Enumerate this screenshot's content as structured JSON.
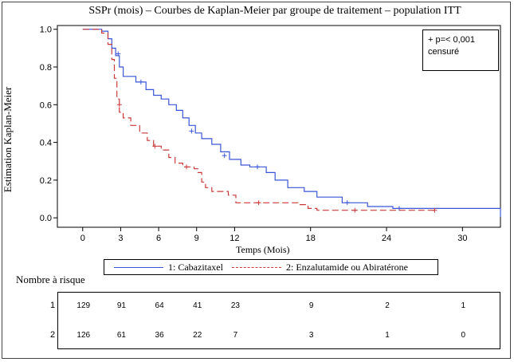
{
  "chart_data": {
    "type": "line",
    "title": "SSPr (mois) – Courbes de Kaplan-Meier par groupe de traitement – population ITT",
    "xlabel": "Temps (Mois)",
    "ylabel": "Estimation Kaplan-Meier",
    "xlim": [
      -2,
      33
    ],
    "ylim": [
      -0.05,
      1.02
    ],
    "xticks": [
      0,
      3,
      6,
      9,
      12,
      18,
      24,
      30
    ],
    "xtick_labels": [
      "0",
      "3",
      "6",
      "9",
      "12",
      "18",
      "24",
      "30"
    ],
    "yticks": [
      0.0,
      0.2,
      0.4,
      0.6,
      0.8,
      1.0
    ],
    "ytick_labels": [
      "0.0",
      "0.2",
      "0.4",
      "0.6",
      "0.8",
      "1.0"
    ],
    "annotation": [
      "+ p=< 0,001",
      "censuré"
    ],
    "series": [
      {
        "name": "1: Cabazitaxel",
        "color": "#3a55d8",
        "dash": "solid",
        "points": [
          [
            0,
            1.0
          ],
          [
            1.5,
            0.99
          ],
          [
            2.0,
            0.95
          ],
          [
            2.3,
            0.9
          ],
          [
            2.6,
            0.86
          ],
          [
            2.9,
            0.8
          ],
          [
            3.2,
            0.75
          ],
          [
            4.2,
            0.72
          ],
          [
            5.0,
            0.68
          ],
          [
            5.6,
            0.65
          ],
          [
            6.2,
            0.63
          ],
          [
            6.8,
            0.6
          ],
          [
            7.4,
            0.57
          ],
          [
            7.9,
            0.53
          ],
          [
            8.4,
            0.49
          ],
          [
            8.9,
            0.45
          ],
          [
            9.4,
            0.42
          ],
          [
            10.2,
            0.39
          ],
          [
            10.9,
            0.35
          ],
          [
            11.6,
            0.31
          ],
          [
            12.5,
            0.28
          ],
          [
            13.2,
            0.27
          ],
          [
            14.5,
            0.24
          ],
          [
            15.2,
            0.2
          ],
          [
            16.2,
            0.16
          ],
          [
            17.5,
            0.14
          ],
          [
            18.5,
            0.11
          ],
          [
            20.5,
            0.08
          ],
          [
            22.5,
            0.06
          ],
          [
            24.5,
            0.05
          ],
          [
            29.0,
            0.05
          ],
          [
            30.5,
            0.05
          ],
          [
            33.0,
            0.05
          ],
          [
            33.0,
            0.005
          ]
        ],
        "censored": [
          [
            2.8,
            0.87
          ],
          [
            4.6,
            0.72
          ],
          [
            8.6,
            0.46
          ],
          [
            11.2,
            0.33
          ],
          [
            13.8,
            0.27
          ],
          [
            20.9,
            0.08
          ],
          [
            25.0,
            0.05
          ]
        ]
      },
      {
        "name": "2: Enzalutamide ou Abiratérone",
        "color": "#c93a3a",
        "dash": "dashed",
        "points": [
          [
            0,
            1.0
          ],
          [
            1.5,
            0.98
          ],
          [
            2.0,
            0.92
          ],
          [
            2.3,
            0.84
          ],
          [
            2.5,
            0.74
          ],
          [
            2.7,
            0.63
          ],
          [
            2.9,
            0.56
          ],
          [
            3.2,
            0.53
          ],
          [
            3.8,
            0.49
          ],
          [
            4.5,
            0.45
          ],
          [
            5.1,
            0.41
          ],
          [
            5.6,
            0.38
          ],
          [
            6.2,
            0.36
          ],
          [
            6.8,
            0.32
          ],
          [
            7.3,
            0.29
          ],
          [
            7.9,
            0.27
          ],
          [
            8.8,
            0.26
          ],
          [
            9.1,
            0.24
          ],
          [
            9.4,
            0.19
          ],
          [
            9.7,
            0.16
          ],
          [
            10.2,
            0.14
          ],
          [
            11.5,
            0.12
          ],
          [
            12.1,
            0.08
          ],
          [
            14.0,
            0.08
          ],
          [
            17.0,
            0.07
          ],
          [
            17.8,
            0.05
          ],
          [
            18.5,
            0.04
          ],
          [
            22.0,
            0.04
          ],
          [
            28.0,
            0.04
          ]
        ],
        "censored": [
          [
            2.9,
            0.6
          ],
          [
            5.7,
            0.38
          ],
          [
            8.2,
            0.27
          ],
          [
            13.9,
            0.08
          ],
          [
            21.5,
            0.04
          ],
          [
            27.8,
            0.04
          ]
        ]
      }
    ]
  },
  "legend": {
    "items": [
      {
        "label": "1: Cabazitaxel",
        "color": "#3a55d8"
      },
      {
        "label": "2: Enzalutamide ou Abiratérone",
        "color": "#c93a3a"
      }
    ]
  },
  "risk_table": {
    "title": "Nombre à risque",
    "rows": [
      {
        "group": "1",
        "values": [
          "129",
          "91",
          "64",
          "41",
          "23",
          "9",
          "2",
          "1"
        ]
      },
      {
        "group": "2",
        "values": [
          "126",
          "61",
          "36",
          "22",
          "7",
          "3",
          "1",
          "0"
        ]
      }
    ],
    "times": [
      0,
      3,
      6,
      9,
      12,
      18,
      24,
      30
    ]
  }
}
